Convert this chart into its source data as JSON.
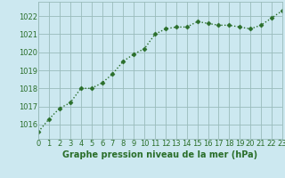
{
  "x": [
    0,
    1,
    2,
    3,
    4,
    5,
    6,
    7,
    8,
    9,
    10,
    11,
    12,
    13,
    14,
    15,
    16,
    17,
    18,
    19,
    20,
    21,
    22,
    23
  ],
  "y": [
    1015.6,
    1016.3,
    1016.9,
    1017.2,
    1018.0,
    1018.0,
    1018.3,
    1018.8,
    1019.5,
    1019.9,
    1020.2,
    1021.0,
    1021.3,
    1021.4,
    1021.4,
    1021.7,
    1021.6,
    1021.5,
    1021.5,
    1021.4,
    1021.3,
    1021.5,
    1021.9,
    1022.3
  ],
  "line_color": "#2a6e2a",
  "marker": "D",
  "marker_size": 2.5,
  "line_width": 1.0,
  "line_style": "dotted",
  "bg_color": "#cce8f0",
  "grid_color": "#99bbbb",
  "tick_color": "#2a6e2a",
  "label_color": "#2a6e2a",
  "xlabel": "Graphe pression niveau de la mer (hPa)",
  "xlabel_fontsize": 7.0,
  "xtick_fontsize": 6.0,
  "ytick_fontsize": 6.0,
  "ylim": [
    1015.2,
    1022.8
  ],
  "xlim": [
    0,
    23
  ],
  "yticks": [
    1016,
    1017,
    1018,
    1019,
    1020,
    1021,
    1022
  ],
  "xticks": [
    0,
    1,
    2,
    3,
    4,
    5,
    6,
    7,
    8,
    9,
    10,
    11,
    12,
    13,
    14,
    15,
    16,
    17,
    18,
    19,
    20,
    21,
    22,
    23
  ]
}
